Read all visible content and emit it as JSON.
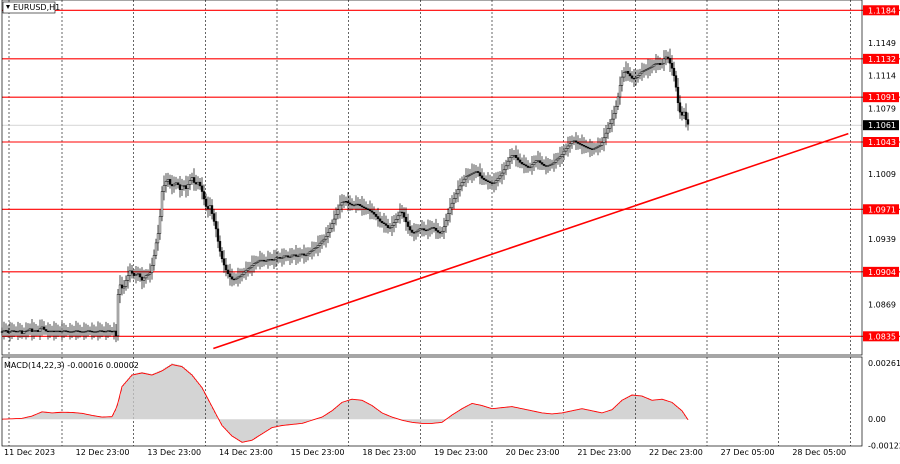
{
  "window": {
    "title": "EURUSD,H1"
  },
  "macd": {
    "label": "MACD(14,22,3) -0.00016 0.00002",
    "ticks": [
      {
        "label": "0.00261",
        "value": 0.00261
      },
      {
        "label": "0.00",
        "value": 0.0
      },
      {
        "label": "-0.00122",
        "value": -0.00122
      }
    ]
  },
  "colors": {
    "level": "#ff0000",
    "trendline": "#ff0000",
    "candle": "#000000",
    "grid": "#000000",
    "histogram": "#a9a9a9",
    "signal": "#ff0000",
    "current_price_bg": "#000000",
    "level_label_bg": "#ff0000"
  },
  "chart_data": {
    "type": "candlestick",
    "symbol": "EURUSD",
    "timeframe": "H1",
    "ylim": [
      1.0815,
      1.1195
    ],
    "price_ticks": [
      {
        "label": "1.1184",
        "value": 1.1184,
        "kind": "level"
      },
      {
        "label": "1.1149",
        "value": 1.1149,
        "kind": "tick"
      },
      {
        "label": "1.1132",
        "value": 1.1132,
        "kind": "level"
      },
      {
        "label": "1.1114",
        "value": 1.1114,
        "kind": "tick"
      },
      {
        "label": "1.1091",
        "value": 1.1091,
        "kind": "level"
      },
      {
        "label": "1.1079",
        "value": 1.1079,
        "kind": "tick"
      },
      {
        "label": "1.1061",
        "value": 1.1061,
        "kind": "current"
      },
      {
        "label": "1.1043",
        "value": 1.1043,
        "kind": "level"
      },
      {
        "label": "1.1009",
        "value": 1.1009,
        "kind": "tick"
      },
      {
        "label": "1.0971",
        "value": 1.0971,
        "kind": "level"
      },
      {
        "label": "1.0939",
        "value": 1.0939,
        "kind": "tick"
      },
      {
        "label": "1.0904",
        "value": 1.0904,
        "kind": "level"
      },
      {
        "label": "1.0869",
        "value": 1.0869,
        "kind": "tick"
      },
      {
        "label": "1.0835",
        "value": 1.0835,
        "kind": "level"
      }
    ],
    "x_labels": [
      "11 Dec 2023",
      "12 Dec 23:00",
      "13 Dec 23:00",
      "14 Dec 23:00",
      "15 Dec 23:00",
      "18 Dec 23:00",
      "19 Dec 23:00",
      "20 Dec 23:00",
      "21 Dec 23:00",
      "22 Dec 23:00",
      "27 Dec 05:00",
      "28 Dec 05:00"
    ],
    "support_resistance_levels": [
      1.1184,
      1.1132,
      1.1091,
      1.1043,
      1.0971,
      1.0904,
      1.0835
    ],
    "current_price": 1.1061,
    "trendline": {
      "start": {
        "x": "13 Dec 23:00",
        "y": 1.0822
      },
      "end": {
        "x": "28 Dec 05:00",
        "y": 1.1052
      }
    },
    "price_path": [
      [
        0,
        1.084
      ],
      [
        3,
        1.0842
      ],
      [
        6,
        1.0839
      ],
      [
        10,
        1.0841
      ],
      [
        14,
        1.084
      ],
      [
        18,
        1.0841
      ],
      [
        20,
        1.0838
      ],
      [
        22,
        1.084
      ],
      [
        25,
        1.0841
      ],
      [
        28,
        1.0843
      ],
      [
        30,
        1.084
      ],
      [
        33,
        1.0842
      ],
      [
        36,
        1.084
      ],
      [
        38,
        1.0843
      ],
      [
        40,
        1.0845
      ],
      [
        43,
        1.0841
      ],
      [
        46,
        1.084
      ],
      [
        49,
        1.0841
      ],
      [
        52,
        1.084
      ],
      [
        55,
        1.0841
      ],
      [
        58,
        1.084
      ],
      [
        62,
        1.0841
      ],
      [
        66,
        1.084
      ],
      [
        70,
        1.084
      ],
      [
        74,
        1.0841
      ],
      [
        78,
        1.084
      ],
      [
        82,
        1.084
      ],
      [
        86,
        1.0841
      ],
      [
        90,
        1.084
      ],
      [
        94,
        1.084
      ],
      [
        98,
        1.0841
      ],
      [
        102,
        1.084
      ],
      [
        106,
        1.0841
      ],
      [
        110,
        1.084
      ],
      [
        113,
        1.0841
      ],
      [
        115,
        1.083
      ],
      [
        116,
        1.088
      ],
      [
        118,
        1.089
      ],
      [
        121,
        1.0885
      ],
      [
        124,
        1.0895
      ],
      [
        128,
        1.0905
      ],
      [
        132,
        1.09
      ],
      [
        136,
        1.0902
      ],
      [
        140,
        1.0895
      ],
      [
        144,
        1.09
      ],
      [
        148,
        1.0903
      ],
      [
        151,
        1.0915
      ],
      [
        154,
        1.0935
      ],
      [
        157,
        1.095
      ],
      [
        160,
        1.099
      ],
      [
        163,
        1.1
      ],
      [
        166,
        1.1003
      ],
      [
        169,
        1.0995
      ],
      [
        172,
        1.0998
      ],
      [
        175,
        1.1
      ],
      [
        178,
        1.0992
      ],
      [
        181,
        1.0998
      ],
      [
        184,
        1.0993
      ],
      [
        187,
        1.1
      ],
      [
        190,
        1.1005
      ],
      [
        193,
        1.0997
      ],
      [
        196,
        1.1
      ],
      [
        199,
        1.0994
      ],
      [
        202,
        1.0982
      ],
      [
        205,
        1.097
      ],
      [
        208,
        1.0975
      ],
      [
        211,
        1.0962
      ],
      [
        214,
        1.095
      ],
      [
        217,
        1.093
      ],
      [
        220,
        1.0918
      ],
      [
        223,
        1.0908
      ],
      [
        227,
        1.09
      ],
      [
        231,
        1.0895
      ],
      [
        235,
        1.0898
      ],
      [
        239,
        1.09
      ],
      [
        243,
        1.0905
      ],
      [
        247,
        1.0908
      ],
      [
        251,
        1.0912
      ],
      [
        255,
        1.0915
      ],
      [
        259,
        1.0917
      ],
      [
        263,
        1.0915
      ],
      [
        267,
        1.0918
      ],
      [
        271,
        1.0916
      ],
      [
        275,
        1.092
      ],
      [
        279,
        1.0918
      ],
      [
        283,
        1.0922
      ],
      [
        287,
        1.0919
      ],
      [
        291,
        1.0923
      ],
      [
        295,
        1.092
      ],
      [
        299,
        1.0924
      ],
      [
        303,
        1.0921
      ],
      [
        307,
        1.0925
      ],
      [
        311,
        1.0928
      ],
      [
        315,
        1.0931
      ],
      [
        319,
        1.0936
      ],
      [
        323,
        1.094
      ],
      [
        327,
        1.0948
      ],
      [
        331,
        1.0958
      ],
      [
        335,
        1.0968
      ],
      [
        339,
        1.0978
      ],
      [
        343,
        1.098
      ],
      [
        347,
        1.0977
      ],
      [
        351,
        1.0975
      ],
      [
        355,
        1.0977
      ],
      [
        359,
        1.0974
      ],
      [
        363,
        1.0972
      ],
      [
        367,
        1.097
      ],
      [
        371,
        1.0967
      ],
      [
        375,
        1.0962
      ],
      [
        379,
        1.0957
      ],
      [
        383,
        1.0955
      ],
      [
        387,
        1.095
      ],
      [
        391,
        1.0955
      ],
      [
        395,
        1.0962
      ],
      [
        399,
        1.097
      ],
      [
        403,
        1.096
      ],
      [
        407,
        1.095
      ],
      [
        411,
        1.0945
      ],
      [
        415,
        1.0948
      ],
      [
        419,
        1.0951
      ],
      [
        423,
        1.0948
      ],
      [
        427,
        1.095
      ],
      [
        431,
        1.0952
      ],
      [
        435,
        1.0947
      ],
      [
        439,
        1.0945
      ],
      [
        443,
        1.0955
      ],
      [
        447,
        1.097
      ],
      [
        451,
        1.098
      ],
      [
        455,
        1.099
      ],
      [
        459,
        1.0998
      ],
      [
        463,
        1.1005
      ],
      [
        467,
        1.1008
      ],
      [
        471,
        1.101
      ],
      [
        475,
        1.1012
      ],
      [
        479,
        1.1005
      ],
      [
        483,
        1.1002
      ],
      [
        487,
        1.1
      ],
      [
        491,
        1.0998
      ],
      [
        495,
        1.1003
      ],
      [
        499,
        1.1008
      ],
      [
        503,
        1.1015
      ],
      [
        507,
        1.1025
      ],
      [
        511,
        1.103
      ],
      [
        515,
        1.1025
      ],
      [
        519,
        1.102
      ],
      [
        523,
        1.1018
      ],
      [
        527,
        1.1015
      ],
      [
        531,
        1.102
      ],
      [
        535,
        1.1024
      ],
      [
        539,
        1.102
      ],
      [
        543,
        1.1017
      ],
      [
        547,
        1.1018
      ],
      [
        551,
        1.102
      ],
      [
        555,
        1.1025
      ],
      [
        559,
        1.1028
      ],
      [
        563,
        1.1035
      ],
      [
        567,
        1.104
      ],
      [
        571,
        1.1045
      ],
      [
        575,
        1.1042
      ],
      [
        579,
        1.104
      ],
      [
        583,
        1.1038
      ],
      [
        587,
        1.1036
      ],
      [
        591,
        1.1035
      ],
      [
        595,
        1.1038
      ],
      [
        599,
        1.104
      ],
      [
        603,
        1.105
      ],
      [
        607,
        1.106
      ],
      [
        611,
        1.107
      ],
      [
        615,
        1.1085
      ],
      [
        619,
        1.111
      ],
      [
        623,
        1.112
      ],
      [
        627,
        1.1115
      ],
      [
        631,
        1.111
      ],
      [
        635,
        1.1113
      ],
      [
        639,
        1.1118
      ],
      [
        643,
        1.112
      ],
      [
        647,
        1.1122
      ],
      [
        651,
        1.1125
      ],
      [
        655,
        1.1128
      ],
      [
        659,
        1.1125
      ],
      [
        662,
        1.1132
      ],
      [
        665,
        1.1135
      ],
      [
        667,
        1.113
      ],
      [
        670,
        1.1122
      ],
      [
        673,
        1.111
      ],
      [
        676,
        1.1085
      ],
      [
        679,
        1.107
      ],
      [
        682,
        1.1075
      ],
      [
        685,
        1.1063
      ],
      [
        687,
        1.1061
      ]
    ],
    "macd_path": [
      [
        0,
        0.0
      ],
      [
        10,
        2e-05
      ],
      [
        20,
        4e-05
      ],
      [
        30,
        0.00015
      ],
      [
        40,
        0.00035
      ],
      [
        50,
        0.0003
      ],
      [
        60,
        0.00033
      ],
      [
        70,
        0.00032
      ],
      [
        80,
        0.00028
      ],
      [
        90,
        0.00018
      ],
      [
        100,
        0.0001
      ],
      [
        110,
        0.00012
      ],
      [
        115,
        0.0006
      ],
      [
        120,
        0.00155
      ],
      [
        130,
        0.0021
      ],
      [
        140,
        0.0022
      ],
      [
        150,
        0.0021
      ],
      [
        160,
        0.0023
      ],
      [
        170,
        0.0026
      ],
      [
        180,
        0.0025
      ],
      [
        190,
        0.0021
      ],
      [
        200,
        0.0015
      ],
      [
        210,
        0.0006
      ],
      [
        220,
        -0.0003
      ],
      [
        230,
        -0.0008
      ],
      [
        240,
        -0.0011
      ],
      [
        250,
        -0.001
      ],
      [
        260,
        -0.0007
      ],
      [
        270,
        -0.0004
      ],
      [
        280,
        -0.0003
      ],
      [
        290,
        -0.00025
      ],
      [
        300,
        -0.0002
      ],
      [
        310,
        -5e-05
      ],
      [
        320,
        0.0001
      ],
      [
        330,
        0.0004
      ],
      [
        340,
        0.0008
      ],
      [
        350,
        0.00095
      ],
      [
        360,
        0.0009
      ],
      [
        370,
        0.00065
      ],
      [
        380,
        0.0003
      ],
      [
        390,
        0.0001
      ],
      [
        400,
        -5e-05
      ],
      [
        410,
        -0.00015
      ],
      [
        420,
        -0.0002
      ],
      [
        430,
        -0.0002
      ],
      [
        440,
        -0.00015
      ],
      [
        450,
        0.0002
      ],
      [
        460,
        0.0005
      ],
      [
        470,
        0.00075
      ],
      [
        480,
        0.00065
      ],
      [
        490,
        0.0005
      ],
      [
        500,
        0.00055
      ],
      [
        510,
        0.0006
      ],
      [
        520,
        0.0005
      ],
      [
        530,
        0.0004
      ],
      [
        540,
        0.0003
      ],
      [
        550,
        0.00025
      ],
      [
        560,
        0.0003
      ],
      [
        570,
        0.0004
      ],
      [
        580,
        0.0005
      ],
      [
        590,
        0.0004
      ],
      [
        600,
        0.0003
      ],
      [
        610,
        0.00045
      ],
      [
        620,
        0.0009
      ],
      [
        630,
        0.00115
      ],
      [
        640,
        0.0011
      ],
      [
        650,
        0.0009
      ],
      [
        660,
        0.00095
      ],
      [
        670,
        0.0008
      ],
      [
        680,
        0.0004
      ],
      [
        687,
        -0.0001
      ]
    ]
  }
}
